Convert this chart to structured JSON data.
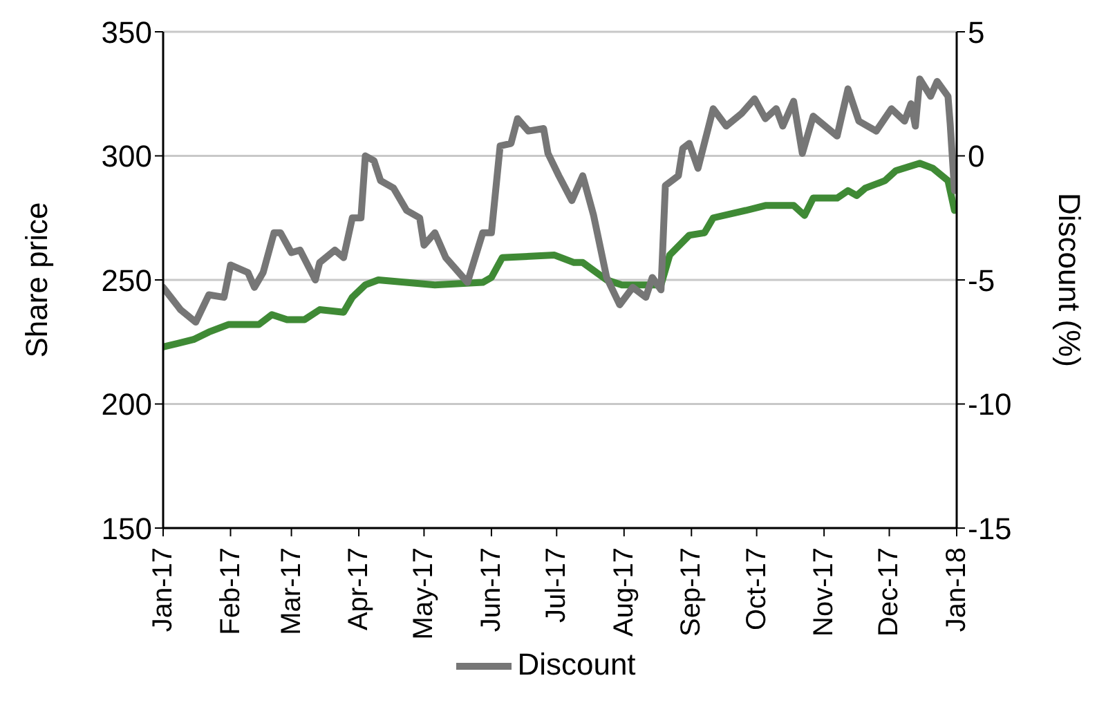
{
  "chart_data": {
    "type": "line",
    "ylabel": "Share price",
    "y2label": "Discount (%)",
    "xlim": [
      "2017-01-01",
      "2018-01-01"
    ],
    "xticks": [
      {
        "value": "2017-01-01",
        "label": "Jan-17"
      },
      {
        "value": "2017-02-01",
        "label": "Feb-17"
      },
      {
        "value": "2017-03-01",
        "label": "Mar-17"
      },
      {
        "value": "2017-04-01",
        "label": "Apr-17"
      },
      {
        "value": "2017-05-01",
        "label": "May-17"
      },
      {
        "value": "2017-06-01",
        "label": "Jun-17"
      },
      {
        "value": "2017-07-01",
        "label": "Jul-17"
      },
      {
        "value": "2017-08-01",
        "label": "Aug-17"
      },
      {
        "value": "2017-09-01",
        "label": "Sep-17"
      },
      {
        "value": "2017-10-01",
        "label": "Oct-17"
      },
      {
        "value": "2017-11-01",
        "label": "Nov-17"
      },
      {
        "value": "2017-12-01",
        "label": "Dec-17"
      },
      {
        "value": "2018-01-01",
        "label": "Jan-18"
      }
    ],
    "ylim": [
      150,
      350
    ],
    "yticks": [
      150,
      200,
      250,
      300,
      350
    ],
    "y2lim": [
      -15,
      5
    ],
    "y2ticks": [
      -15,
      -10,
      -5,
      0,
      5
    ],
    "grid": "y",
    "legend": "bottom",
    "marker": "none",
    "line_style": "solid",
    "series": [
      {
        "color": "#3f8a35",
        "x": [
          "2017-01-01",
          "2017-01-15",
          "2017-01-22",
          "2017-01-31",
          "2017-02-14",
          "2017-02-20",
          "2017-02-27",
          "2017-03-07",
          "2017-03-14",
          "2017-03-25",
          "2017-03-29",
          "2017-04-04",
          "2017-04-10",
          "2017-05-06",
          "2017-05-28",
          "2017-06-01",
          "2017-06-06",
          "2017-06-30",
          "2017-07-09",
          "2017-07-13",
          "2017-07-24",
          "2017-07-31",
          "2017-08-18",
          "2017-08-22",
          "2017-08-31",
          "2017-09-07",
          "2017-09-11",
          "2017-09-26",
          "2017-10-05",
          "2017-10-18",
          "2017-10-23",
          "2017-10-27",
          "2017-11-07",
          "2017-11-12",
          "2017-11-16",
          "2017-11-20",
          "2017-11-29",
          "2017-12-04",
          "2017-12-15",
          "2017-12-21",
          "2017-12-28",
          "2017-12-31"
        ],
        "values": [
          223,
          226,
          229,
          232,
          232,
          236,
          234,
          234,
          238,
          237,
          243,
          248,
          250,
          248,
          249,
          251,
          259,
          260,
          257,
          257,
          250,
          248,
          248,
          260,
          268,
          269,
          275,
          278,
          280,
          280,
          276,
          283,
          283,
          286,
          284,
          287,
          290,
          294,
          297,
          295,
          290,
          278
        ]
      },
      {
        "name": "Discount",
        "color": "#767676",
        "axis": "y2",
        "x": [
          "2017-01-01",
          "2017-01-09",
          "2017-01-16",
          "2017-01-22",
          "2017-01-29",
          "2017-02-01",
          "2017-02-09",
          "2017-02-12",
          "2017-02-16",
          "2017-02-21",
          "2017-02-24",
          "2017-03-01",
          "2017-03-05",
          "2017-03-12",
          "2017-03-14",
          "2017-03-21",
          "2017-03-25",
          "2017-03-29",
          "2017-04-02",
          "2017-04-04",
          "2017-04-08",
          "2017-04-11",
          "2017-04-17",
          "2017-04-23",
          "2017-04-29",
          "2017-05-01",
          "2017-05-06",
          "2017-05-11",
          "2017-05-21",
          "2017-05-28",
          "2017-06-01",
          "2017-06-05",
          "2017-06-10",
          "2017-06-13",
          "2017-06-18",
          "2017-06-25",
          "2017-06-27",
          "2017-07-02",
          "2017-07-08",
          "2017-07-13",
          "2017-07-18",
          "2017-07-24",
          "2017-07-30",
          "2017-08-05",
          "2017-08-11",
          "2017-08-14",
          "2017-08-18",
          "2017-08-20",
          "2017-08-26",
          "2017-08-28",
          "2017-08-31",
          "2017-09-04",
          "2017-09-11",
          "2017-09-17",
          "2017-09-24",
          "2017-09-30",
          "2017-10-05",
          "2017-10-10",
          "2017-10-13",
          "2017-10-18",
          "2017-10-22",
          "2017-10-27",
          "2017-11-07",
          "2017-11-12",
          "2017-11-17",
          "2017-11-25",
          "2017-12-02",
          "2017-12-08",
          "2017-12-11",
          "2017-12-13",
          "2017-12-15",
          "2017-12-20",
          "2017-12-23",
          "2017-12-28",
          "2017-12-29",
          "2017-12-31"
        ],
        "values": [
          -5.3,
          -6.2,
          -6.7,
          -5.6,
          -5.7,
          -4.4,
          -4.7,
          -5.3,
          -4.7,
          -3.1,
          -3.1,
          -3.9,
          -3.8,
          -5.0,
          -4.3,
          -3.8,
          -4.1,
          -2.5,
          -2.5,
          0.0,
          -0.2,
          -1.0,
          -1.3,
          -2.2,
          -2.5,
          -3.6,
          -3.1,
          -4.1,
          -5.1,
          -3.1,
          -3.1,
          0.4,
          0.5,
          1.5,
          1.0,
          1.1,
          0.1,
          -0.8,
          -1.8,
          -0.8,
          -2.4,
          -4.9,
          -6.0,
          -5.3,
          -5.7,
          -4.9,
          -5.4,
          -1.2,
          -0.8,
          0.3,
          0.5,
          -0.5,
          1.9,
          1.2,
          1.7,
          2.3,
          1.5,
          1.9,
          1.2,
          2.2,
          0.1,
          1.6,
          0.8,
          2.7,
          1.4,
          1.0,
          1.9,
          1.4,
          2.1,
          1.2,
          3.1,
          2.4,
          3.0,
          2.4,
          1.3,
          -1.4
        ]
      }
    ]
  }
}
